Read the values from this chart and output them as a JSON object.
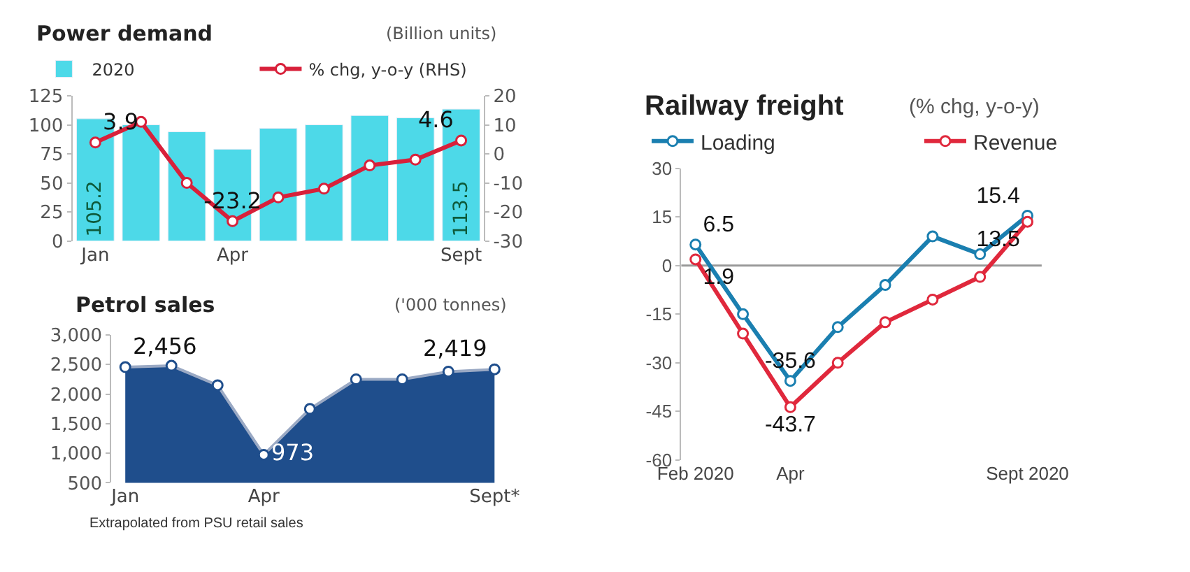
{
  "chart_data": [
    {
      "type": "bar",
      "title": "Power demand",
      "subtitle": "(Billion units)",
      "categories": [
        "Jan",
        null,
        null,
        "Apr",
        null,
        null,
        null,
        null,
        "Sept"
      ],
      "series": [
        {
          "name": "2020",
          "type": "bar",
          "color": "#4dd9e8",
          "values": [
            105.2,
            100,
            94,
            79,
            97,
            100,
            108,
            106,
            113.5
          ],
          "value_labels": [
            "105.2",
            null,
            null,
            null,
            null,
            null,
            null,
            null,
            "113.5"
          ]
        },
        {
          "name": "% chg, y-o-y (RHS)",
          "type": "line",
          "axis": "y2",
          "color": "#d8203a",
          "values": [
            3.9,
            11,
            -10,
            -23.2,
            -15,
            -12,
            -4,
            -2,
            4.6
          ],
          "value_labels": [
            "3.9",
            null,
            null,
            "-23.2",
            null,
            null,
            null,
            null,
            "4.6"
          ]
        }
      ],
      "ylim": [
        0,
        125
      ],
      "yticks": [
        0,
        25,
        50,
        75,
        100,
        125
      ],
      "y2lim": [
        -30,
        20
      ],
      "y2ticks": [
        -30,
        -20,
        -10,
        0,
        10,
        20
      ],
      "marker": "circle",
      "legend": "top",
      "grid": false
    },
    {
      "type": "area",
      "title": "Petrol sales",
      "subtitle": "('000 tonnes)",
      "categories": [
        "Jan",
        null,
        null,
        "Apr",
        null,
        null,
        null,
        null,
        "Sept*"
      ],
      "series": [
        {
          "color": "#1f4e8c",
          "values": [
            2456,
            2480,
            2150,
            973,
            1750,
            2250,
            2250,
            2380,
            2419
          ],
          "value_labels": [
            "2,456",
            null,
            null,
            "973",
            null,
            null,
            null,
            null,
            "2,419"
          ]
        }
      ],
      "ylim": [
        500,
        3000
      ],
      "yticks": [
        {
          "value": 500,
          "label": "500"
        },
        {
          "value": 1000,
          "label": "1,000"
        },
        {
          "value": 1500,
          "label": "1,500"
        },
        {
          "value": 2000,
          "label": "2,000"
        },
        {
          "value": 2500,
          "label": "2,500"
        },
        {
          "value": 3000,
          "label": "3,000"
        }
      ],
      "marker": "circle",
      "grid": false,
      "annotations": [
        "Extrapolated from PSU retail sales"
      ]
    },
    {
      "type": "line",
      "title": "Railway freight",
      "subtitle": "(% chg, y-o-y)",
      "categories": [
        "Feb 2020",
        null,
        "Apr",
        null,
        null,
        null,
        null,
        "Sept 2020"
      ],
      "series": [
        {
          "name": "Loading",
          "color": "#1a7fb0",
          "values": [
            6.5,
            -15,
            -35.6,
            -19,
            -6,
            9,
            3.5,
            15.4
          ],
          "value_labels": [
            "6.5",
            null,
            "-35.6",
            null,
            null,
            null,
            null,
            "15.4"
          ]
        },
        {
          "name": "Revenue",
          "color": "#e0283c",
          "values": [
            1.9,
            -21,
            -43.7,
            -30,
            -17.5,
            -10.5,
            -3.5,
            13.5
          ],
          "value_labels": [
            "1.9",
            null,
            "-43.7",
            null,
            null,
            null,
            null,
            "13.5"
          ]
        }
      ],
      "ylim": [
        -60,
        30
      ],
      "yticks": [
        -60,
        -45,
        -30,
        -15,
        0,
        15,
        30
      ],
      "ref_lines": [
        {
          "axis": "y",
          "value": 0,
          "color": "#9a9a9a"
        }
      ],
      "marker": "circle",
      "legend": "top",
      "grid": false
    }
  ]
}
